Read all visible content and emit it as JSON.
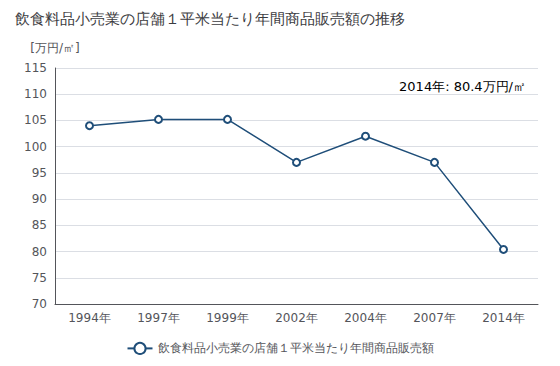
{
  "chart_data": {
    "type": "line",
    "title": "飲食料品小売業の店舗１平米当たり年間商品販売額の推移",
    "ylabel": "[万円/㎡]",
    "annotation": "2014年: 80.4万円/㎡",
    "categories": [
      "1994年",
      "1997年",
      "1999年",
      "2002年",
      "2004年",
      "2007年",
      "2014年"
    ],
    "series": [
      {
        "name": "飲食料品小売業の店舗１平米当たり年間商品販売額",
        "color": "#1f4e79",
        "values": [
          104.0,
          105.2,
          105.2,
          97.0,
          102.0,
          97.0,
          80.4
        ]
      }
    ],
    "ylim": [
      70,
      115
    ],
    "yticks": [
      70,
      75,
      80,
      85,
      90,
      95,
      100,
      105,
      110,
      115
    ],
    "grid": true,
    "legend": "bottom",
    "marker": "circle"
  }
}
